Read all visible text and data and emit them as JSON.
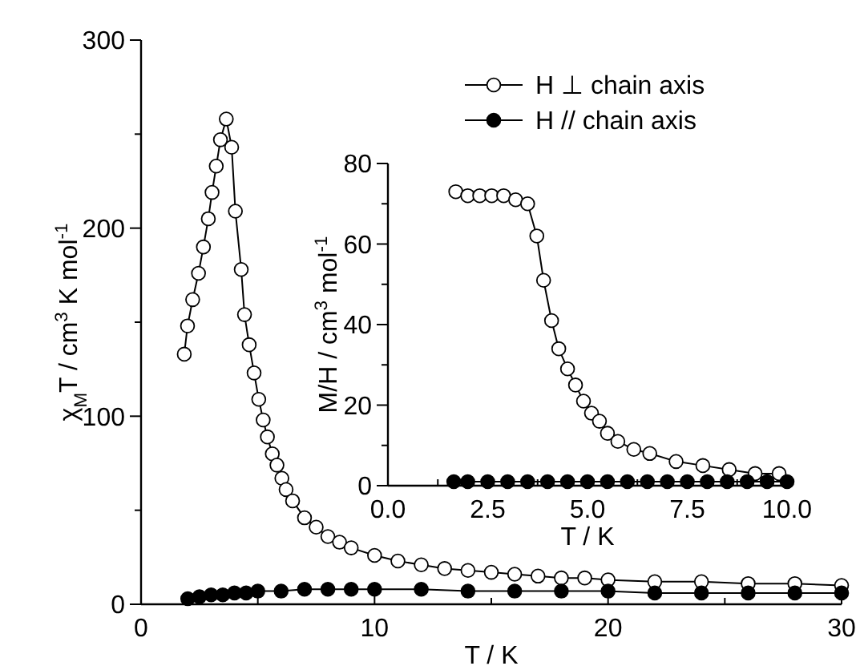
{
  "chart_data": [
    {
      "type": "line",
      "xlabel": "T / K",
      "ylabel": "χ$_{M}$T / cm$^{3}$ K mol$^{-1}$",
      "xlim": [
        0,
        30
      ],
      "ylim": [
        0,
        300
      ],
      "xticks": [
        0,
        {
          "value": 5,
          "label": null
        },
        10,
        {
          "value": 15,
          "label": null
        },
        20,
        {
          "value": 25,
          "label": null
        },
        30
      ],
      "yticks": [
        0,
        {
          "value": 50,
          "label": null
        },
        100,
        {
          "value": 150,
          "label": null
        },
        200,
        {
          "value": 250,
          "label": null
        },
        300
      ],
      "marker": "circle",
      "legend": "top right",
      "grid": false,
      "series": [
        {
          "name": "H ⊥ chain axis",
          "color": "#ffffff",
          "x": [
            1.85,
            1.99,
            2.21,
            2.46,
            2.67,
            2.88,
            3.04,
            3.22,
            3.4,
            3.65,
            3.88,
            4.04,
            4.29,
            4.43,
            4.63,
            4.84,
            5.04,
            5.23,
            5.41,
            5.62,
            5.82,
            6.03,
            6.21,
            6.49,
            7,
            7.5,
            8,
            8.5,
            9,
            10,
            11,
            12,
            13,
            14,
            15,
            16,
            17,
            18,
            19,
            20,
            22,
            24,
            26,
            28,
            30
          ],
          "values": [
            133,
            148,
            162,
            176,
            190,
            205,
            219,
            233,
            247,
            258,
            243,
            209,
            178,
            154,
            138,
            123,
            109,
            98,
            89,
            80,
            74,
            67,
            61,
            55,
            46,
            41,
            36,
            33,
            30,
            26,
            23,
            21,
            19,
            18,
            17,
            16,
            15,
            14,
            14,
            13,
            12,
            12,
            11,
            11,
            10
          ]
        },
        {
          "name": "H // chain axis",
          "color": "#000000",
          "x": [
            2,
            2.5,
            3,
            3.5,
            4,
            4.5,
            5,
            6,
            7,
            8,
            9,
            10,
            12,
            14,
            16,
            18,
            20,
            22,
            24,
            26,
            28,
            30
          ],
          "values": [
            3,
            4,
            5,
            5,
            6,
            6,
            7,
            7,
            8,
            8,
            8,
            8,
            8,
            7,
            7,
            7,
            7,
            6,
            6,
            6,
            6,
            6
          ]
        }
      ]
    },
    {
      "type": "line",
      "xlabel": "T / K",
      "ylabel": "M/H / cm$^{3}$ mol$^{-1}$",
      "xlim": [
        0,
        10
      ],
      "ylim": [
        0,
        80
      ],
      "xticks": [
        {
          "value": 0,
          "label": "0.0"
        },
        {
          "value": 1.25,
          "label": null
        },
        2.5,
        {
          "value": 3.75,
          "label": null
        },
        {
          "value": 5,
          "label": "5.0"
        },
        {
          "value": 6.25,
          "label": null
        },
        7.5,
        {
          "value": 8.75,
          "label": null
        },
        {
          "value": 10,
          "label": "10.0"
        }
      ],
      "yticks": [
        0,
        {
          "value": 10,
          "label": null
        },
        20,
        {
          "value": 30,
          "label": null
        },
        40,
        {
          "value": 50,
          "label": null
        },
        60,
        {
          "value": 70,
          "label": null
        },
        80
      ],
      "marker": "circle",
      "grid": false,
      "series": [
        {
          "color": "#ffffff",
          "x": [
            1.7,
            2,
            2.3,
            2.6,
            2.9,
            3.2,
            3.5,
            3.73,
            3.9,
            4.1,
            4.28,
            4.5,
            4.7,
            4.9,
            5.1,
            5.3,
            5.5,
            5.76,
            6.16,
            6.56,
            7.22,
            7.89,
            8.55,
            9.2,
            9.8
          ],
          "values": [
            73,
            72,
            72,
            72,
            72,
            71,
            70,
            62,
            51,
            41,
            34,
            29,
            25,
            21,
            18,
            16,
            13,
            11,
            9,
            8,
            6,
            5,
            4,
            3,
            3
          ]
        },
        {
          "color": "#000000",
          "x": [
            1.65,
            2,
            2.5,
            3,
            3.5,
            4,
            4.5,
            5,
            5.5,
            6,
            6.5,
            7,
            7.5,
            8,
            8.5,
            9,
            9.5,
            10
          ],
          "values": [
            1,
            1,
            1,
            1,
            1,
            1,
            1,
            1,
            1,
            1,
            1,
            1,
            1,
            1,
            1,
            1,
            1,
            1
          ]
        }
      ]
    }
  ]
}
